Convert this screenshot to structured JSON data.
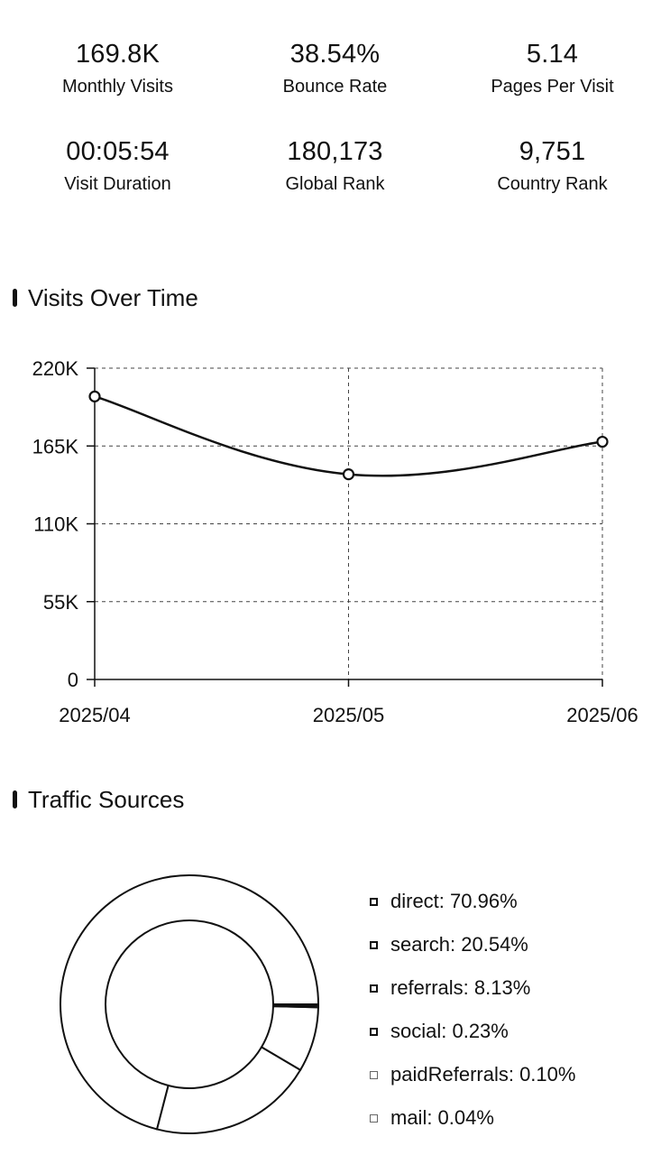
{
  "stats": [
    {
      "value": "169.8K",
      "label": "Monthly Visits"
    },
    {
      "value": "38.54%",
      "label": "Bounce Rate"
    },
    {
      "value": "5.14",
      "label": "Pages Per Visit"
    },
    {
      "value": "00:05:54",
      "label": "Visit Duration"
    },
    {
      "value": "180,173",
      "label": "Global Rank"
    },
    {
      "value": "9,751",
      "label": "Country Rank"
    }
  ],
  "visits_section": {
    "title": "Visits Over Time"
  },
  "traffic_section": {
    "title": "Traffic Sources"
  },
  "chart_data": [
    {
      "type": "line",
      "x": [
        "2025/04",
        "2025/05",
        "2025/06"
      ],
      "series": [
        {
          "values": [
            200000,
            145000,
            168000
          ]
        }
      ],
      "y_ticks": [
        "0",
        "55K",
        "110K",
        "165K",
        "220K"
      ],
      "ylim": [
        0,
        220000
      ],
      "grid": true
    },
    {
      "type": "pie",
      "categories": [
        "direct",
        "search",
        "referrals",
        "social",
        "paidReferrals",
        "mail"
      ],
      "values": [
        70.96,
        20.54,
        8.13,
        0.23,
        0.1,
        0.04
      ],
      "legend": [
        "direct: 70.96%",
        "search: 20.54%",
        "referrals: 8.13%",
        "social: 0.23%",
        "paidReferrals: 0.10%",
        "mail: 0.04%"
      ],
      "legend_position": "right"
    }
  ]
}
